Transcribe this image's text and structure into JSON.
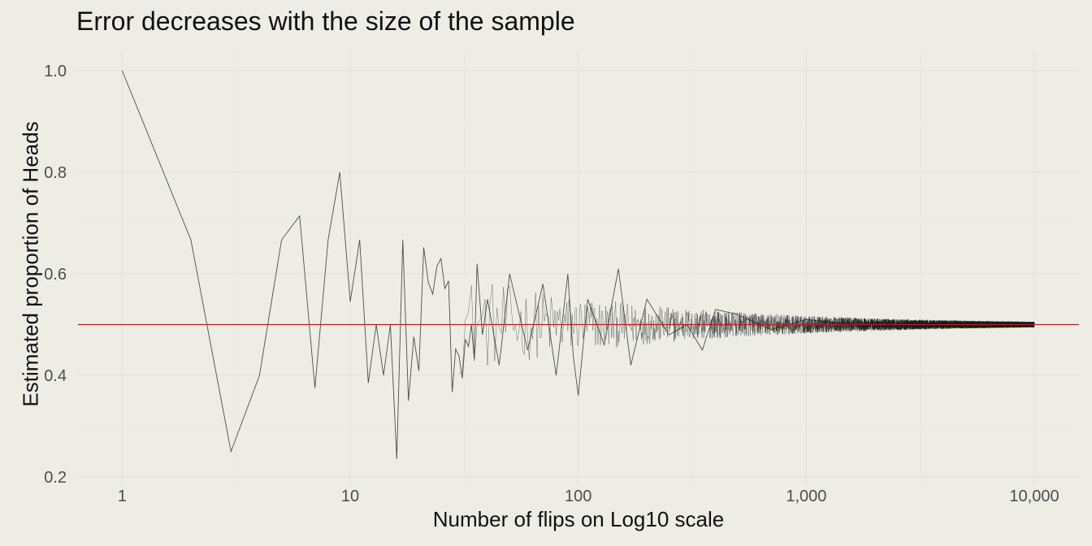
{
  "chart_data": {
    "type": "line",
    "title": "Error decreases with the size of the sample",
    "xlabel": "Number of flips on Log10 scale",
    "ylabel": "Estimated proportion of Heads",
    "x_scale": "log10",
    "xlim": [
      0.64,
      15700
    ],
    "ylim": [
      0.2,
      1.0
    ],
    "x_ticks": [
      1,
      10,
      100,
      1000,
      10000
    ],
    "x_tick_labels": [
      "1",
      "10",
      "100",
      "1,000",
      "10,000"
    ],
    "y_ticks": [
      0.2,
      0.4,
      0.6,
      0.8,
      1.0
    ],
    "y_tick_labels": [
      "0.2",
      "0.4",
      "0.6",
      "0.8",
      "1.0"
    ],
    "grid": true,
    "legend": "none",
    "reference_line": {
      "y": 0.5,
      "color": "#ff0000"
    },
    "series_color": "#4d4d4d",
    "n_flips": 10000,
    "series": [
      {
        "x": [
          1,
          2,
          3,
          4,
          5,
          6,
          7,
          8,
          9,
          10,
          11,
          12,
          13,
          14,
          15,
          16,
          17,
          18,
          19,
          20,
          21,
          22,
          23,
          24,
          25,
          26,
          27,
          28,
          29,
          30,
          31,
          32,
          33,
          34,
          35,
          36,
          38,
          40,
          45,
          50,
          60,
          70,
          80,
          90,
          95,
          100,
          110,
          130,
          150,
          170,
          200,
          250,
          300,
          350,
          400,
          500,
          700,
          1000,
          2000,
          3000,
          5000,
          10000
        ],
        "y": [
          1.0,
          0.667,
          0.25,
          0.4,
          0.667,
          0.714,
          0.375,
          0.667,
          0.8,
          0.545,
          0.667,
          0.385,
          0.5,
          0.4,
          0.5,
          0.235,
          0.667,
          0.35,
          0.476,
          0.409,
          0.652,
          0.583,
          0.56,
          0.615,
          0.63,
          0.571,
          0.586,
          0.367,
          0.452,
          0.438,
          0.394,
          0.471,
          0.457,
          0.5,
          0.432,
          0.62,
          0.48,
          0.55,
          0.42,
          0.6,
          0.45,
          0.58,
          0.4,
          0.6,
          0.44,
          0.36,
          0.55,
          0.46,
          0.61,
          0.42,
          0.55,
          0.48,
          0.5,
          0.45,
          0.53,
          0.52,
          0.49,
          0.51,
          0.495,
          0.505,
          0.498,
          0.501
        ]
      }
    ]
  }
}
